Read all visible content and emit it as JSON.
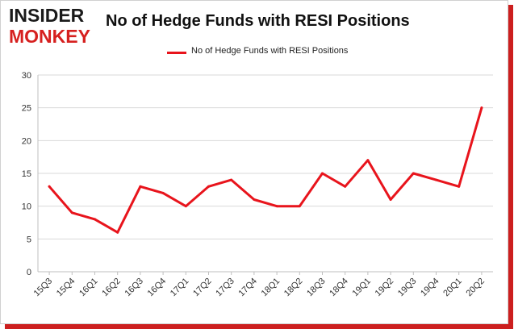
{
  "header": {
    "logo_top": "INSIDER",
    "logo_bottom": "MONKEY",
    "title": "No of Hedge Funds with RESI Positions"
  },
  "colors": {
    "series_line": "#e8141c",
    "logo_red": "#d6201f",
    "grid": "#d9d9d9"
  },
  "chart_data": {
    "type": "line",
    "title": "No of Hedge Funds with RESI Positions",
    "xlabel": "",
    "ylabel": "",
    "ylim": [
      0,
      30
    ],
    "yticks": [
      0,
      5,
      10,
      15,
      20,
      25,
      30
    ],
    "grid": true,
    "legend_position": "top-center",
    "categories": [
      "15Q3",
      "15Q4",
      "16Q1",
      "16Q2",
      "16Q3",
      "16Q4",
      "17Q1",
      "17Q2",
      "17Q3",
      "17Q4",
      "18Q1",
      "18Q2",
      "18Q3",
      "18Q4",
      "19Q1",
      "19Q2",
      "19Q3",
      "19Q4",
      "20Q1",
      "20Q2"
    ],
    "series": [
      {
        "name": "No of Hedge Funds with RESI Positions",
        "values": [
          13,
          9,
          8,
          6,
          13,
          12,
          10,
          13,
          14,
          11,
          10,
          10,
          15,
          13,
          17,
          11,
          15,
          14,
          13,
          25
        ]
      }
    ]
  }
}
